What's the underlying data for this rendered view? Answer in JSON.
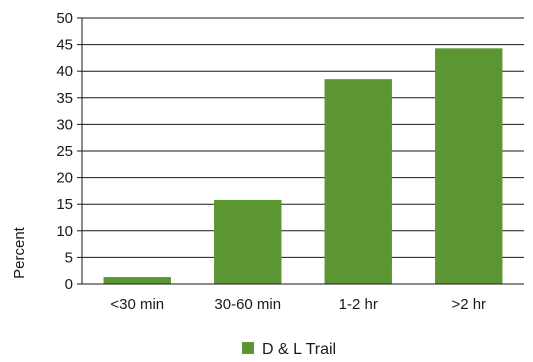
{
  "chart_data": {
    "type": "bar",
    "title": "",
    "xlabel": "",
    "ylabel": "Percent",
    "categories": [
      "<30 min",
      "30-60 min",
      "1-2 hr",
      ">2 hr"
    ],
    "series": [
      {
        "name": "D & L Trail",
        "values": [
          1.3,
          15.8,
          38.5,
          44.3
        ],
        "color": "#5b9632"
      }
    ],
    "ylim": [
      0,
      50
    ],
    "yticks": [
      "0",
      "5",
      "10",
      "15",
      "20",
      "25",
      "30",
      "35",
      "40",
      "45",
      "50"
    ],
    "grid": true,
    "legend_position": "bottom-center"
  }
}
